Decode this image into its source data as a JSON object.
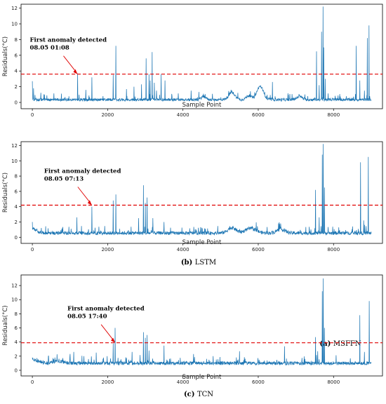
{
  "chart_data": [
    {
      "type": "line",
      "caption_letter": "(a)",
      "caption_name": "MSFFN",
      "xlabel": "Sample Point",
      "ylabel": "Residuals(°C)",
      "xlim": [
        -300,
        9300
      ],
      "ylim": [
        -0.8,
        12.5
      ],
      "xticks": [
        0,
        2000,
        4000,
        6000,
        8000
      ],
      "yticks": [
        0,
        2,
        4,
        6,
        8,
        10,
        12
      ],
      "threshold": 3.6,
      "annotation": {
        "line1": "First anomaly detected",
        "line2": "08.05 01:08",
        "x": 1200,
        "y": 3.6
      },
      "baseline": 0.35,
      "noise": 0.35,
      "bumps": [
        [
          4550,
          0.4,
          90
        ],
        [
          5300,
          0.9,
          120
        ],
        [
          6050,
          1.7,
          120
        ],
        [
          5750,
          0.5,
          100
        ],
        [
          7100,
          0.4,
          100
        ]
      ],
      "spikes": [
        [
          0,
          2.7
        ],
        [
          30,
          1.8
        ],
        [
          1200,
          3.7
        ],
        [
          1420,
          1.6
        ],
        [
          1580,
          3.2
        ],
        [
          2150,
          3.5
        ],
        [
          2220,
          7.2
        ],
        [
          2500,
          1.7
        ],
        [
          2700,
          2.0
        ],
        [
          2900,
          2.3
        ],
        [
          3020,
          5.6
        ],
        [
          3100,
          3.6
        ],
        [
          3130,
          2.8
        ],
        [
          3180,
          6.4
        ],
        [
          3240,
          2.5
        ],
        [
          3300,
          1.5
        ],
        [
          3420,
          3.6
        ],
        [
          3520,
          2.8
        ],
        [
          4220,
          1.5
        ],
        [
          6380,
          2.6
        ],
        [
          7550,
          6.5
        ],
        [
          7620,
          2.2
        ],
        [
          7680,
          9.0
        ],
        [
          7720,
          12.2
        ],
        [
          7740,
          7.0
        ],
        [
          7780,
          3.0
        ],
        [
          8600,
          7.2
        ],
        [
          8700,
          2.8
        ],
        [
          8820,
          1.5
        ],
        [
          8900,
          8.2
        ],
        [
          8940,
          9.8
        ]
      ]
    },
    {
      "type": "line",
      "caption_letter": "(b)",
      "caption_name": "LSTM",
      "xlabel": "Sample Point",
      "ylabel": "Residuals(°C)",
      "xlim": [
        -300,
        9300
      ],
      "ylim": [
        -0.8,
        12.5
      ],
      "xticks": [
        0,
        2000,
        4000,
        6000,
        8000
      ],
      "yticks": [
        0,
        2,
        4,
        6,
        8,
        10,
        12
      ],
      "threshold": 4.2,
      "annotation": {
        "line1": "First anomaly detected",
        "line2": "08.05 07:13",
        "x": 1580,
        "y": 4.2
      },
      "baseline": 0.55,
      "noise": 0.45,
      "bumps": [
        [
          0,
          0.6,
          150
        ],
        [
          5300,
          0.7,
          150
        ],
        [
          5800,
          0.6,
          200
        ],
        [
          6600,
          0.5,
          150
        ]
      ],
      "spikes": [
        [
          0,
          2.0
        ],
        [
          1180,
          2.6
        ],
        [
          1580,
          4.0
        ],
        [
          2150,
          4.8
        ],
        [
          2220,
          5.6
        ],
        [
          2820,
          2.5
        ],
        [
          2950,
          6.8
        ],
        [
          3000,
          4.5
        ],
        [
          3050,
          5.2
        ],
        [
          3200,
          2.5
        ],
        [
          3500,
          2.0
        ],
        [
          7520,
          6.2
        ],
        [
          7620,
          2.6
        ],
        [
          7700,
          10.8
        ],
        [
          7730,
          12.2
        ],
        [
          7760,
          6.5
        ],
        [
          8720,
          9.8
        ],
        [
          8800,
          2.2
        ],
        [
          8920,
          10.5
        ]
      ]
    },
    {
      "type": "line",
      "caption_letter": "(c)",
      "caption_name": "TCN",
      "xlabel": "Sample Point",
      "ylabel": "Residuals(°C)",
      "xlim": [
        -300,
        9300
      ],
      "ylim": [
        -0.8,
        13.5
      ],
      "xticks": [
        0,
        2000,
        4000,
        6000,
        8000
      ],
      "yticks": [
        0,
        2,
        4,
        6,
        8,
        10,
        12
      ],
      "threshold": 3.9,
      "annotation": {
        "line1": "First anomaly detected",
        "line2": "08.05 17:40",
        "x": 2200,
        "y": 3.9
      },
      "baseline": 1.0,
      "noise": 0.5,
      "bumps": [
        [
          0,
          0.5,
          200
        ],
        [
          700,
          0.3,
          200
        ]
      ],
      "spikes": [
        [
          0,
          1.8
        ],
        [
          1100,
          2.6
        ],
        [
          1700,
          2.5
        ],
        [
          2150,
          3.8
        ],
        [
          2200,
          6.0
        ],
        [
          2650,
          2.6
        ],
        [
          2950,
          5.4
        ],
        [
          3000,
          4.6
        ],
        [
          3050,
          5.0
        ],
        [
          3100,
          2.8
        ],
        [
          3500,
          3.5
        ],
        [
          4280,
          2.3
        ],
        [
          4800,
          2.0
        ],
        [
          5500,
          2.7
        ],
        [
          6700,
          3.4
        ],
        [
          7520,
          4.7
        ],
        [
          7580,
          2.7
        ],
        [
          7700,
          11.2
        ],
        [
          7730,
          13.0
        ],
        [
          7760,
          6.0
        ],
        [
          8700,
          7.8
        ],
        [
          8820,
          2.6
        ],
        [
          8950,
          9.8
        ]
      ]
    }
  ]
}
